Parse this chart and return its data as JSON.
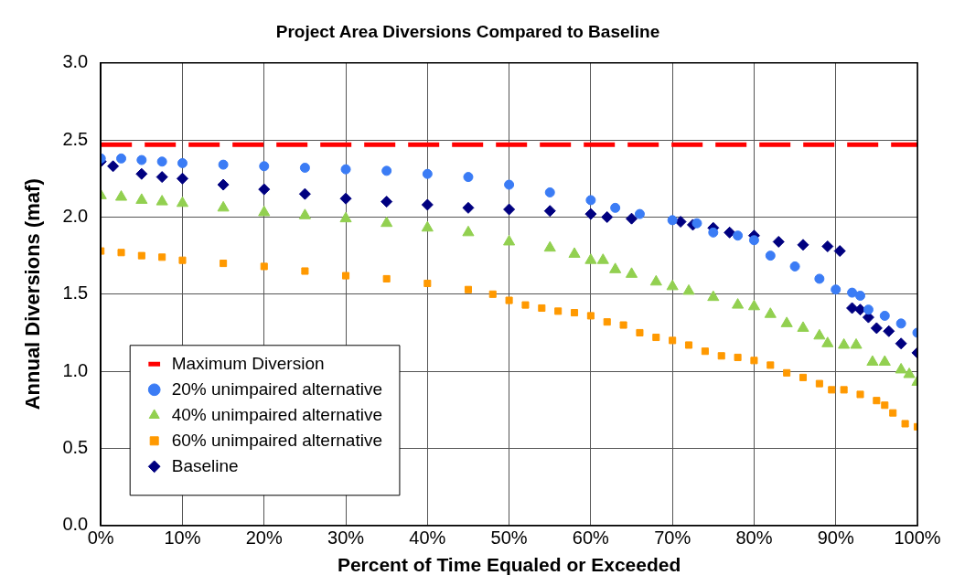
{
  "chart_data": {
    "type": "scatter",
    "title": "Project Area Diversions Compared to Baseline",
    "xlabel": "Percent of Time Equaled or Exceeded",
    "ylabel": "Annual Diversions (maf)",
    "xlim": [
      0,
      100
    ],
    "xticks": [
      {
        "value": 0,
        "label": "0%"
      },
      {
        "value": 10,
        "label": "10%"
      },
      {
        "value": 20,
        "label": "20%"
      },
      {
        "value": 30,
        "label": "30%"
      },
      {
        "value": 40,
        "label": "40%"
      },
      {
        "value": 50,
        "label": "50%"
      },
      {
        "value": 60,
        "label": "60%"
      },
      {
        "value": 70,
        "label": "70%"
      },
      {
        "value": 80,
        "label": "80%"
      },
      {
        "value": 90,
        "label": "90%"
      },
      {
        "value": 100,
        "label": "100%"
      }
    ],
    "ylim": [
      0,
      3
    ],
    "yticks": [
      {
        "value": 0,
        "label": "0.0"
      },
      {
        "value": 0.5,
        "label": "0.5"
      },
      {
        "value": 1,
        "label": "1.0"
      },
      {
        "value": 1.5,
        "label": "1.5"
      },
      {
        "value": 2,
        "label": "2.0"
      },
      {
        "value": 2.5,
        "label": "2.5"
      },
      {
        "value": 3,
        "label": "3.0"
      }
    ],
    "grid": true,
    "legend": "bottom left",
    "series": [
      {
        "name": "Maximum Diversion",
        "type": "line",
        "color": "#ff0000",
        "line_style": "dashed",
        "marker": "none",
        "x": [
          0,
          100
        ],
        "values": [
          2.47,
          2.47
        ]
      },
      {
        "name": "20% unimpaired alternative",
        "type": "scatter",
        "color": "#3b7cf5",
        "marker": "circle",
        "x": [
          0,
          2.5,
          5,
          7.5,
          10,
          15,
          20,
          25,
          30,
          35,
          40,
          45,
          50,
          55,
          60,
          63,
          66,
          70,
          73,
          75,
          78,
          80,
          82,
          85,
          88,
          90,
          92,
          93,
          94,
          96,
          98,
          100
        ],
        "values": [
          2.38,
          2.38,
          2.37,
          2.36,
          2.35,
          2.34,
          2.33,
          2.32,
          2.31,
          2.3,
          2.28,
          2.26,
          2.21,
          2.16,
          2.11,
          2.06,
          2.02,
          1.98,
          1.96,
          1.9,
          1.88,
          1.85,
          1.75,
          1.68,
          1.6,
          1.53,
          1.51,
          1.49,
          1.4,
          1.36,
          1.31,
          1.25
        ]
      },
      {
        "name": "40% unimpaired alternative",
        "type": "scatter",
        "color": "#92d050",
        "marker": "triangle",
        "x": [
          0,
          2.5,
          5,
          7.5,
          10,
          15,
          20,
          25,
          30,
          35,
          40,
          45,
          50,
          55,
          58,
          60,
          61.5,
          63,
          65,
          68,
          70,
          72,
          75,
          78,
          80,
          82,
          84,
          86,
          88,
          89,
          91,
          92.5,
          94.5,
          96,
          98,
          99,
          100
        ],
        "values": [
          2.14,
          2.13,
          2.11,
          2.1,
          2.09,
          2.06,
          2.03,
          2.01,
          1.99,
          1.96,
          1.93,
          1.9,
          1.84,
          1.8,
          1.76,
          1.72,
          1.72,
          1.66,
          1.63,
          1.58,
          1.55,
          1.52,
          1.48,
          1.43,
          1.42,
          1.37,
          1.31,
          1.28,
          1.23,
          1.18,
          1.17,
          1.17,
          1.06,
          1.06,
          1.01,
          0.98,
          0.93
        ]
      },
      {
        "name": "60% unimpaired alternative",
        "type": "scatter",
        "color": "#ff9900",
        "marker": "square",
        "x": [
          0,
          2.5,
          5,
          7.5,
          10,
          15,
          20,
          25,
          30,
          35,
          40,
          45,
          48,
          50,
          52,
          54,
          56,
          58,
          60,
          62,
          64,
          66,
          68,
          70,
          72,
          74,
          76,
          78,
          80,
          82,
          84,
          86,
          88,
          89.5,
          91,
          93,
          95,
          96,
          97,
          98.5,
          100
        ],
        "values": [
          1.78,
          1.77,
          1.75,
          1.74,
          1.72,
          1.7,
          1.68,
          1.65,
          1.62,
          1.6,
          1.57,
          1.53,
          1.5,
          1.46,
          1.43,
          1.41,
          1.39,
          1.38,
          1.36,
          1.32,
          1.3,
          1.25,
          1.22,
          1.2,
          1.17,
          1.13,
          1.1,
          1.09,
          1.07,
          1.04,
          0.99,
          0.96,
          0.92,
          0.88,
          0.88,
          0.85,
          0.81,
          0.78,
          0.73,
          0.66,
          0.64
        ]
      },
      {
        "name": "Baseline",
        "type": "scatter",
        "color": "#000080",
        "marker": "diamond",
        "x": [
          0,
          1.5,
          5,
          7.5,
          10,
          15,
          20,
          25,
          30,
          35,
          40,
          45,
          50,
          55,
          60,
          62,
          65,
          71,
          72.5,
          75,
          77,
          80,
          83,
          86,
          89,
          90.5,
          92,
          93,
          94,
          95,
          96.5,
          98,
          100
        ],
        "values": [
          2.36,
          2.33,
          2.28,
          2.26,
          2.25,
          2.21,
          2.18,
          2.15,
          2.12,
          2.1,
          2.08,
          2.06,
          2.05,
          2.04,
          2.02,
          2.0,
          1.99,
          1.97,
          1.95,
          1.93,
          1.9,
          1.88,
          1.84,
          1.82,
          1.81,
          1.78,
          1.41,
          1.4,
          1.35,
          1.28,
          1.26,
          1.18,
          1.12
        ]
      }
    ]
  }
}
